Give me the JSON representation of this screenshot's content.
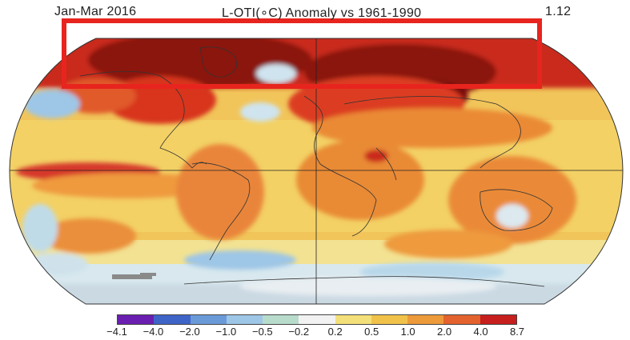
{
  "header": {
    "period": "Jan-Mar 2016",
    "title": "L-OTI(∘C) Anomaly vs 1961-1990",
    "global_mean": "1.12"
  },
  "legend": {
    "labels": [
      "−4.1",
      "−4.0",
      "−2.0",
      "−1.0",
      "−0.5",
      "−0.2",
      "0.2",
      "0.5",
      "1.0",
      "2.0",
      "4.0",
      "8.7"
    ],
    "colors": [
      "#6a1fb0",
      "#3e64c8",
      "#6a9ad8",
      "#9ec6e6",
      "#b8dccc",
      "#f2f2f2",
      "#f3e07a",
      "#f1c24a",
      "#ed9a3a",
      "#e3622e",
      "#c71e1e"
    ]
  },
  "annotation": {
    "highlight_color": "#e8241e",
    "highlight_region": "arctic-latitudes"
  },
  "map": {
    "projection": "robinson",
    "ocean_base_color": "#f1c55a",
    "arctic_color": "#7a1010"
  }
}
